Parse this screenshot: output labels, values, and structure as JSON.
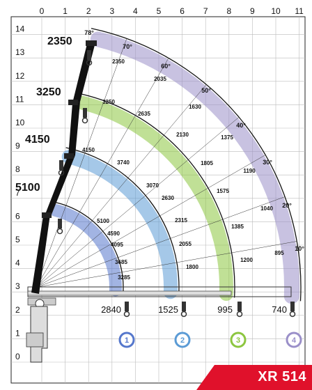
{
  "model": "XR 514",
  "axes": {
    "x_ticks": [
      "0",
      "1",
      "2",
      "3",
      "4",
      "5",
      "6",
      "7",
      "8",
      "9",
      "10",
      "11"
    ],
    "y_ticks": [
      "0",
      "1",
      "2",
      "3",
      "4",
      "5",
      "6",
      "7",
      "8",
      "9",
      "10",
      "11",
      "12",
      "13",
      "14"
    ]
  },
  "boom_capacities": [
    "5100",
    "4150",
    "3250",
    "2350"
  ],
  "angle_labels": [
    "78°",
    "70°",
    "60°",
    "50°",
    "40°",
    "30°",
    "20°",
    "10°"
  ],
  "arcs": [
    {
      "id": "1",
      "end_load": "2840",
      "color": "#5577cc"
    },
    {
      "id": "2",
      "end_load": "1525",
      "color": "#5b9bd5"
    },
    {
      "id": "3",
      "end_load": "995",
      "color": "#8cc63f"
    },
    {
      "id": "4",
      "end_load": "740",
      "color": "#9a8fc9"
    }
  ],
  "inner_loads": [
    "2350",
    "2035",
    "1630",
    "1375",
    "1190",
    "1040",
    "895",
    "3250",
    "2635",
    "2130",
    "1805",
    "1575",
    "1385",
    "1200",
    "4150",
    "3740",
    "3070",
    "2630",
    "2315",
    "2055",
    "1800",
    "5100",
    "4590",
    "4095",
    "3685",
    "3285"
  ],
  "chart_data": {
    "type": "diagram",
    "title": "",
    "xlabel": "",
    "ylabel": "",
    "xlim": [
      0,
      11
    ],
    "ylim": [
      0,
      14
    ],
    "booms": [
      {
        "extension": "1",
        "capacity": "5100",
        "angles": [
          "—"
        ],
        "loads": [
          "5100",
          "4590",
          "4095",
          "3685",
          "3285"
        ],
        "end_load": "2840"
      },
      {
        "extension": "2",
        "capacity": "4150",
        "loads": [
          "4150",
          "3740",
          "3070",
          "2630",
          "2315",
          "2055",
          "1800"
        ],
        "end_load": "1525"
      },
      {
        "extension": "3",
        "capacity": "3250",
        "loads": [
          "3250",
          "2635",
          "2130",
          "1805",
          "1575",
          "1385",
          "1200"
        ],
        "end_load": "995"
      },
      {
        "extension": "4",
        "capacity": "2350",
        "loads": [
          "2350",
          "2035",
          "1630",
          "1375",
          "1190",
          "1040",
          "895"
        ],
        "end_load": "740"
      }
    ],
    "angle_labels": [
      "78°",
      "70°",
      "60°",
      "50°",
      "40°",
      "30°",
      "20°",
      "10°"
    ]
  }
}
